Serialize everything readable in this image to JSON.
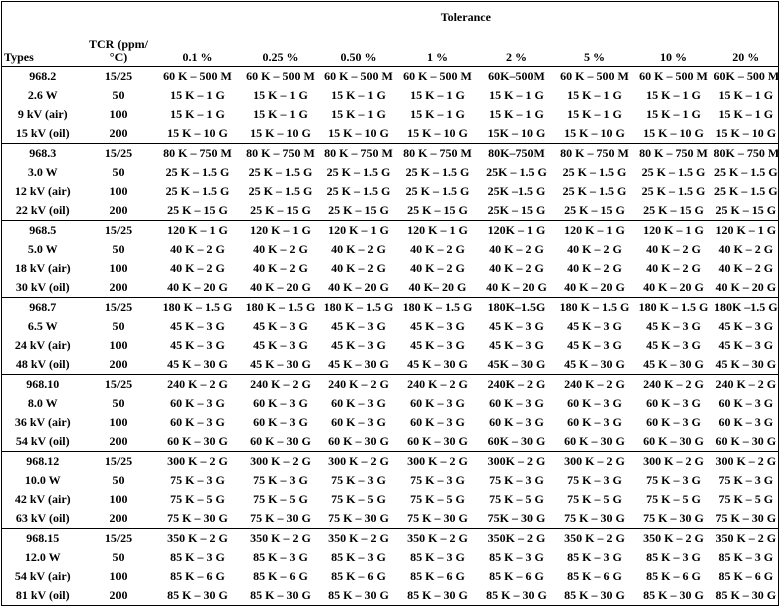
{
  "table": {
    "tolerance_title": "Tolerance",
    "columns": [
      "Types",
      "TCR (ppm/°C)",
      "0.1 %",
      "0.25 %",
      "0.50 %",
      "1 %",
      "2 %",
      "5 %",
      "10 %",
      "20 %"
    ],
    "groups": [
      [
        [
          "968.2",
          "15/25",
          "60 K – 500 M",
          "60 K – 500 M",
          "60 K – 500 M",
          "60 K – 500 M",
          "60K–500M",
          "60 K – 500 M",
          "60 K – 500 M",
          "60K – 500 M"
        ],
        [
          "2.6 W",
          "50",
          "15 K – 1 G",
          "15 K – 1 G",
          "15 K – 1 G",
          "15 K – 1 G",
          "15 K – 1 G",
          "15 K – 1 G",
          "15 K – 1 G",
          "15 K – 1 G"
        ],
        [
          "9 kV (air)",
          "100",
          "15 K – 1 G",
          "15 K – 1 G",
          "15 K – 1 G",
          "15 K – 1 G",
          "15 K – 1 G",
          "15 K – 1 G",
          "15 K – 1 G",
          "15 K – 1 G"
        ],
        [
          "15 kV (oil)",
          "200",
          "15 K – 10 G",
          "15 K – 10 G",
          "15 K – 10 G",
          "15 K – 10 G",
          "15K – 10 G",
          "15 K – 10 G",
          "15 K – 10 G",
          "15 K – 10 G"
        ]
      ],
      [
        [
          "968.3",
          "15/25",
          "80 K – 750 M",
          "80 K – 750 M",
          "80 K – 750 M",
          "80 K – 750 M",
          "80K–750M",
          "80 K – 750 M",
          "80 K – 750 M",
          "80K – 750 M"
        ],
        [
          "3.0 W",
          "50",
          "25 K – 1.5 G",
          "25 K – 1.5 G",
          "25 K – 1.5 G",
          "25 K – 1.5 G",
          "25K – 1.5 G",
          "25 K – 1.5 G",
          "25 K – 1.5 G",
          "25 K – 1.5 G"
        ],
        [
          "12 kV (air)",
          "100",
          "25 K – 1.5 G",
          "25 K – 1.5 G",
          "25 K – 1.5 G",
          "25 K – 1.5 G",
          "25K –1.5 G",
          "25 K – 1.5 G",
          "25 K – 1.5 G",
          "25 K – 1.5 G"
        ],
        [
          "22 kV (oil)",
          "200",
          "25 K – 15 G",
          "25 K – 15 G",
          "25 K – 15 G",
          "25 K – 15 G",
          "25K – 15 G",
          "25 K – 15 G",
          "25 K – 15 G",
          "25 K – 15 G"
        ]
      ],
      [
        [
          "968.5",
          "15/25",
          "120 K – 1 G",
          "120 K – 1 G",
          "120 K – 1 G",
          "120 K – 1 G",
          "120K – 1 G",
          "120 K – 1 G",
          "120 K – 1 G",
          "120 K – 1 G"
        ],
        [
          "5.0 W",
          "50",
          "40 K – 2 G",
          "40 K – 2 G",
          "40 K – 2 G",
          "40 K – 2 G",
          "40 K – 2 G",
          "40 K – 2 G",
          "40 K – 2 G",
          "40 K – 2 G"
        ],
        [
          "18 kV (air)",
          "100",
          "40 K – 2 G",
          "40 K – 2 G",
          "40 K – 2 G",
          "40 K – 2 G",
          "40 K – 2 G",
          "40 K – 2 G",
          "40 K – 2 G",
          "40 K – 2 G"
        ],
        [
          "30 kV (oil)",
          "200",
          "40 K – 20 G",
          "40 K – 20 G",
          "40 K – 20 G",
          "40 K– 20 G",
          "40 K – 20 G",
          "40 K – 20 G",
          "40 K – 20 G",
          "40 K – 20 G"
        ]
      ],
      [
        [
          "968.7",
          "15/25",
          "180 K – 1.5 G",
          "180 K – 1.5 G",
          "180 K – 1.5 G",
          "180 K – 1.5 G",
          "180K–1.5G",
          "180 K – 1.5 G",
          "180 K – 1.5 G",
          "180K –1.5 G"
        ],
        [
          "6.5 W",
          "50",
          "45 K – 3 G",
          "45 K – 3 G",
          "45 K – 3 G",
          "45 K – 3 G",
          "45 K – 3 G",
          "45 K – 3 G",
          "45 K – 3 G",
          "45 K – 3 G"
        ],
        [
          "24 kV (air)",
          "100",
          "45 K – 3 G",
          "45 K – 3 G",
          "45 K – 3 G",
          "45 K – 3 G",
          "45 K – 3 G",
          "45 K – 3 G",
          "45 K – 3 G",
          "45 K – 3 G"
        ],
        [
          "48 kV (oil)",
          "200",
          "45 K – 30 G",
          "45 K – 30 G",
          "45 K – 30 G",
          "45 K – 30 G",
          "45K – 30 G",
          "45 K – 30 G",
          "45 K – 30 G",
          "45 K – 30 G"
        ]
      ],
      [
        [
          "968.10",
          "15/25",
          "240 K – 2 G",
          "240 K – 2 G",
          "240 K – 2 G",
          "240 K – 2 G",
          "240K – 2 G",
          "240 K – 2 G",
          "240 K – 2 G",
          "240 K – 2 G"
        ],
        [
          "8.0 W",
          "50",
          "60 K – 3 G",
          "60 K – 3 G",
          "60 K – 3 G",
          "60 K – 3 G",
          "60 K – 3 G",
          "60 K – 3 G",
          "60 K – 3 G",
          "60 K – 3 G"
        ],
        [
          "36 kV (air)",
          "100",
          "60 K – 3 G",
          "60 K – 3 G",
          "60 K – 3 G",
          "60 K – 3 G",
          "60 K – 3 G",
          "60 K – 3 G",
          "60 K – 3 G",
          "60 K – 3 G"
        ],
        [
          "54 kV (oil)",
          "200",
          "60 K – 30 G",
          "60 K – 30 G",
          "60 K – 30 G",
          "60 K – 30 G",
          "60K – 30 G",
          "60 K – 30 G",
          "60 K – 30 G",
          "60 K – 30 G"
        ]
      ],
      [
        [
          "968.12",
          "15/25",
          "300 K – 2 G",
          "300 K – 2 G",
          "300 K – 2 G",
          "300 K – 2 G",
          "300K – 2 G",
          "300 K – 2 G",
          "300 K – 2 G",
          "300 K – 2 G"
        ],
        [
          "10.0 W",
          "50",
          "75 K – 3 G",
          "75 K – 3 G",
          "75 K – 3 G",
          "75 K – 3 G",
          "75 K – 3 G",
          "75 K – 3 G",
          "75 K – 3 G",
          "75 K – 3 G"
        ],
        [
          "42 kV (air)",
          "100",
          "75 K – 5 G",
          "75 K – 5 G",
          "75 K – 5 G",
          "75 K – 5 G",
          "75 K – 5 G",
          "75 K – 5 G",
          "75 K – 5 G",
          "75 K – 5 G"
        ],
        [
          "63 kV (oil)",
          "200",
          "75 K – 30 G",
          "75 K – 30 G",
          "75 K – 30 G",
          "75 K – 30 G",
          "75K – 30 G",
          "75 K – 30 G",
          "75 K – 30 G",
          "75 K – 30 G"
        ]
      ],
      [
        [
          "968.15",
          "15/25",
          "350 K – 2 G",
          "350 K – 2 G",
          "350 K – 2 G",
          "350 K – 2 G",
          "350K – 2 G",
          "350 K – 2 G",
          "350 K – 2 G",
          "350 K – 2 G"
        ],
        [
          "12.0 W",
          "50",
          "85 K – 3 G",
          "85 K – 3 G",
          "85 K – 3 G",
          "85 K – 3 G",
          "85 K – 3 G",
          "85 K – 3 G",
          "85 K – 3 G",
          "85 K – 3 G"
        ],
        [
          "54 kV (air)",
          "100",
          "85 K – 6 G",
          "85 K – 6 G",
          "85 K – 6 G",
          "85 K – 6 G",
          "85 K – 6 G",
          "85 K – 6 G",
          "85 K – 6 G",
          "85 K – 6 G"
        ],
        [
          "81 kV (oil)",
          "200",
          "85 K – 30 G",
          "85 K – 30 G",
          "85 K – 30 G",
          "85 K – 30 G",
          "85 K – 30 G",
          "85 K – 30 G",
          "85 K – 30 G",
          "85 K – 30 G"
        ]
      ]
    ]
  }
}
